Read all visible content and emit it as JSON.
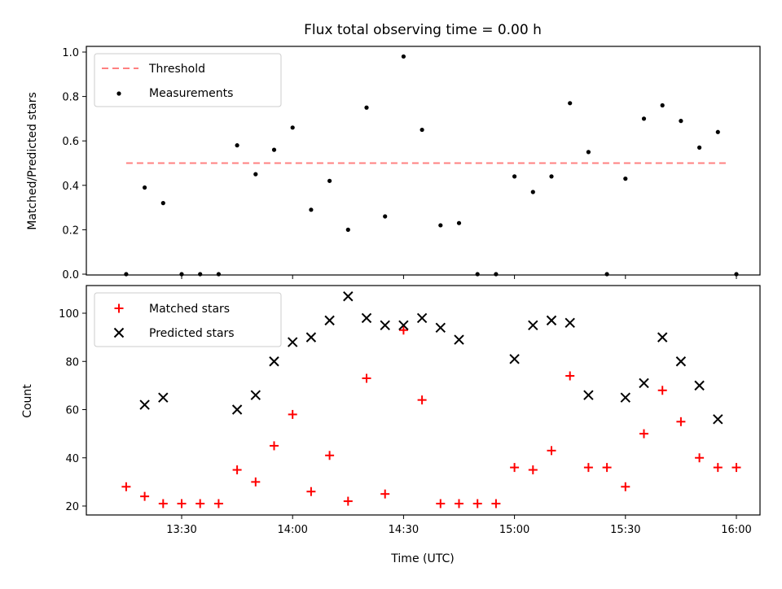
{
  "chart_data": [
    {
      "type": "scatter",
      "title": "Flux total observing time = 0.00 h",
      "ylabel": "Matched/Predicted stars",
      "xlabel": "",
      "ylim": [
        0.0,
        1.0
      ],
      "yticks": [
        "0.0",
        "0.2",
        "0.4",
        "0.6",
        "0.8",
        "1.0"
      ],
      "legend_position": "top-left",
      "threshold": {
        "name": "Threshold",
        "value": 0.5,
        "x_start": "13:15",
        "x_end": "15:58",
        "color": "#ff8080",
        "style": "dashed"
      },
      "series": [
        {
          "name": "Measurements",
          "color": "#000000",
          "marker": "dot",
          "x": [
            "13:15",
            "13:20",
            "13:25",
            "13:30",
            "13:35",
            "13:40",
            "13:45",
            "13:50",
            "13:55",
            "14:00",
            "14:05",
            "14:10",
            "14:15",
            "14:20",
            "14:25",
            "14:30",
            "14:35",
            "14:40",
            "14:45",
            "14:50",
            "14:55",
            "15:00",
            "15:05",
            "15:10",
            "15:15",
            "15:20",
            "15:25",
            "15:30",
            "15:35",
            "15:40",
            "15:45",
            "15:50",
            "15:55",
            "16:00"
          ],
          "y": [
            0.0,
            0.39,
            0.32,
            0.0,
            0.0,
            0.0,
            0.58,
            0.45,
            0.56,
            0.66,
            0.29,
            0.42,
            0.2,
            0.75,
            0.26,
            0.98,
            0.65,
            0.22,
            0.23,
            0.0,
            0.0,
            0.44,
            0.37,
            0.44,
            0.77,
            0.55,
            0.0,
            0.43,
            0.7,
            0.76,
            0.69,
            0.57,
            0.64,
            0.0
          ]
        }
      ]
    },
    {
      "type": "scatter",
      "title": "",
      "ylabel": "Count",
      "xlabel": "Time (UTC)",
      "ylim": [
        17,
        111
      ],
      "yticks": [
        "20",
        "40",
        "60",
        "80",
        "100"
      ],
      "xticks": [
        "13:30",
        "14:00",
        "14:30",
        "15:00",
        "15:30",
        "16:00"
      ],
      "legend_position": "top-left",
      "series": [
        {
          "name": "Matched stars",
          "color": "#ff0000",
          "marker": "plus",
          "x": [
            "13:15",
            "13:20",
            "13:25",
            "13:30",
            "13:35",
            "13:40",
            "13:45",
            "13:50",
            "13:55",
            "14:00",
            "14:05",
            "14:10",
            "14:15",
            "14:20",
            "14:25",
            "14:30",
            "14:35",
            "14:40",
            "14:45",
            "14:50",
            "14:55",
            "15:00",
            "15:05",
            "15:10",
            "15:15",
            "15:20",
            "15:25",
            "15:30",
            "15:35",
            "15:40",
            "15:45",
            "15:50",
            "15:55",
            "16:00",
            "16:05"
          ],
          "y": [
            28,
            24,
            21,
            21,
            21,
            21,
            35,
            30,
            45,
            58,
            26,
            41,
            22,
            73,
            25,
            93,
            64,
            21,
            21,
            21,
            21,
            36,
            35,
            43,
            74,
            36,
            36,
            28,
            50,
            68,
            55,
            40,
            36,
            36,
            null
          ]
        },
        {
          "name": "Predicted stars",
          "color": "#000000",
          "marker": "x",
          "x": [
            "13:20",
            "13:25",
            "13:45",
            "13:50",
            "13:55",
            "14:00",
            "14:05",
            "14:10",
            "14:15",
            "14:20",
            "14:25",
            "14:30",
            "14:35",
            "14:40",
            "14:45",
            "15:00",
            "15:05",
            "15:10",
            "15:15",
            "15:20",
            "15:30",
            "15:35",
            "15:40",
            "15:45",
            "15:50",
            "15:55"
          ],
          "y": [
            62,
            65,
            60,
            66,
            80,
            88,
            90,
            97,
            107,
            98,
            95,
            95,
            98,
            94,
            89,
            81,
            95,
            97,
            96,
            66,
            65,
            71,
            90,
            80,
            70,
            56
          ]
        }
      ]
    }
  ]
}
